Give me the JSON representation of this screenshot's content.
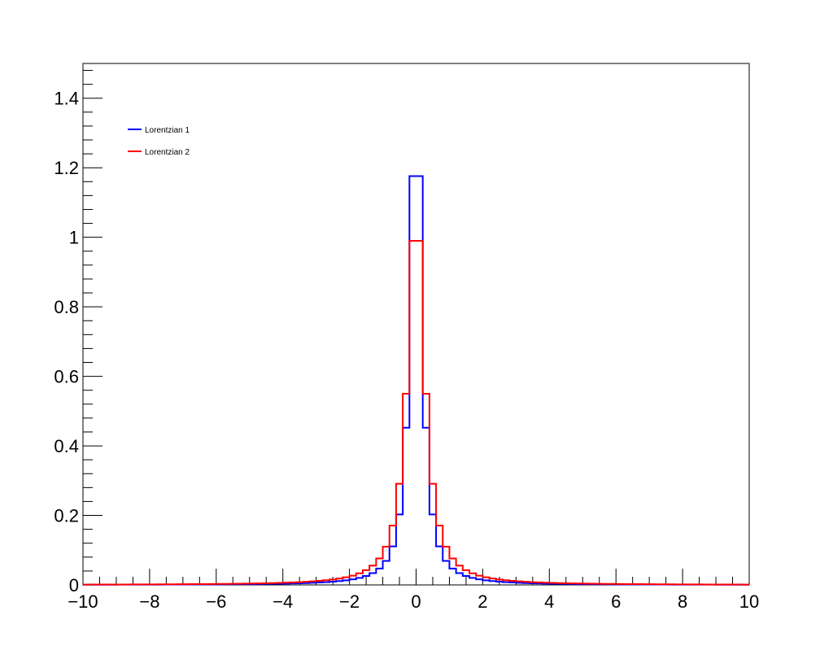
{
  "chart_data": {
    "type": "line",
    "title": "",
    "xlabel": "",
    "ylabel": "",
    "xlim": [
      -10,
      10
    ],
    "ylim": [
      0,
      1.5
    ],
    "grid": false,
    "legend_position": "top-left",
    "x_tick_labels": [
      "−10",
      "−8",
      "−6",
      "−4",
      "−2",
      "0",
      "2",
      "4",
      "6",
      "8",
      "10"
    ],
    "x_tick_values": [
      -10,
      -8,
      -6,
      -4,
      -2,
      0,
      2,
      4,
      6,
      8,
      10
    ],
    "y_tick_labels": [
      "0",
      "0.2",
      "0.4",
      "0.6",
      "0.8",
      "1",
      "1.2",
      "1.4"
    ],
    "y_tick_values": [
      0,
      0.2,
      0.4,
      0.6,
      0.8,
      1,
      1.2,
      1.4
    ],
    "bins": {
      "min": -10,
      "max": 10,
      "count": 100
    },
    "series": [
      {
        "name": "Lorentzian 1",
        "color": "#0000ff",
        "model": "lorentzian",
        "gamma": 0.2,
        "amplitude": 1.47
      },
      {
        "name": "Lorentzian 2",
        "color": "#ff0000",
        "model": "lorentzian",
        "gamma": 0.3,
        "amplitude": 1.1
      }
    ]
  }
}
